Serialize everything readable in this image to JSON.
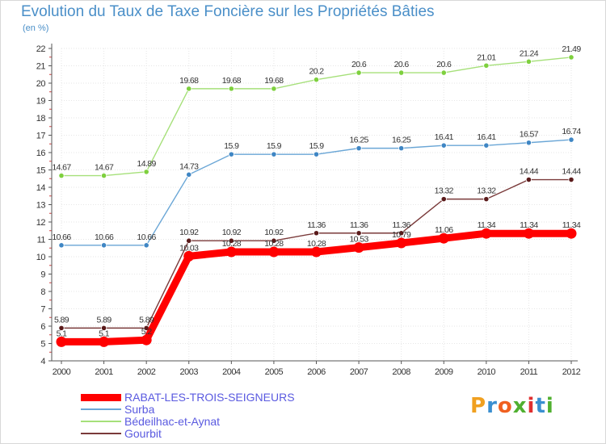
{
  "title": "Evolution du Taux de Taxe Foncière sur les Propriétés Bâties",
  "unit": "(en %)",
  "logo": "Proxiti",
  "chart_data": {
    "type": "line",
    "title": "Evolution du Taux de Taxe Foncière sur les Propriétés Bâties",
    "ylabel": "(en %)",
    "xlabel": "",
    "x": [
      "2000",
      "2001",
      "2002",
      "2003",
      "2004",
      "2005",
      "2006",
      "2007",
      "2008",
      "2009",
      "2010",
      "2011",
      "2012"
    ],
    "ylim": [
      4,
      22
    ],
    "yticks": [
      4,
      5,
      6,
      7,
      8,
      9,
      10,
      11,
      12,
      13,
      14,
      15,
      16,
      17,
      18,
      19,
      20,
      21,
      22
    ],
    "grid": true,
    "legend_position": "bottom-left",
    "series": [
      {
        "name": "RABAT-LES-TROIS-SEIGNEURS",
        "color": "#ff0000",
        "marker": "#ff0000",
        "values": [
          5.1,
          5.1,
          5.2,
          10.03,
          10.28,
          10.28,
          10.28,
          10.53,
          10.79,
          11.06,
          11.34,
          11.34,
          11.34
        ],
        "labels": [
          "5.1",
          "5.1",
          "5.2",
          "10.03",
          "10.28",
          "10.28",
          "10.28",
          "10.53",
          "10.79",
          "11.06",
          "11.34",
          "11.34",
          "11.34"
        ]
      },
      {
        "name": "Surba",
        "color": "#6aa6d6",
        "marker": "#3f86c4",
        "values": [
          10.66,
          10.66,
          10.66,
          14.73,
          15.9,
          15.9,
          15.9,
          16.25,
          16.25,
          16.41,
          16.41,
          16.57,
          16.74
        ],
        "labels": [
          "10.66",
          "10.66",
          "10.66",
          "14.73",
          "15.9",
          "15.9",
          "15.9",
          "16.25",
          "16.25",
          "16.41",
          "16.41",
          "16.57",
          "16.74"
        ]
      },
      {
        "name": "Bédeilhac-et-Aynat",
        "color": "#a6e07a",
        "marker": "#7ed03e",
        "values": [
          14.67,
          14.67,
          14.89,
          19.68,
          19.68,
          19.68,
          20.2,
          20.6,
          20.6,
          20.6,
          21.01,
          21.24,
          21.49
        ],
        "labels": [
          "14.67",
          "14.67",
          "14.89",
          "19.68",
          "19.68",
          "19.68",
          "20.2",
          "20.6",
          "20.6",
          "20.6",
          "21.01",
          "21.24",
          "21.49"
        ]
      },
      {
        "name": "Gourbit",
        "color": "#7a3a3a",
        "marker": "#5a1a1a",
        "values": [
          5.89,
          5.89,
          5.89,
          10.92,
          10.92,
          10.92,
          11.36,
          11.36,
          11.36,
          13.32,
          13.32,
          14.44,
          14.44
        ],
        "labels": [
          "5.89",
          "5.89",
          "5.89",
          "10.92",
          "10.92",
          "10.92",
          "11.36",
          "11.36",
          "11.36",
          "13.32",
          "13.32",
          "14.44",
          "14.44"
        ]
      }
    ]
  }
}
